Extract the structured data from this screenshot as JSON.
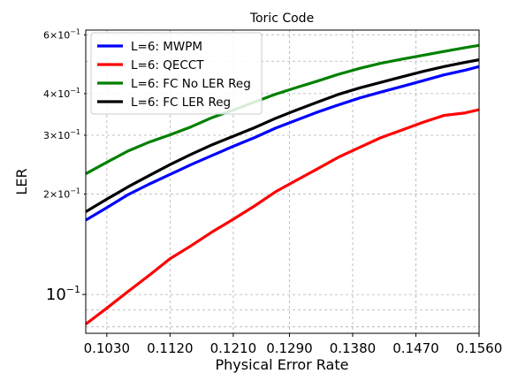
{
  "chart_data": {
    "type": "line",
    "title": "Toric Code",
    "xlabel": "Physical Error Rate",
    "ylabel": "LER",
    "yscale": "log",
    "xlim": [
      0.1,
      0.156
    ],
    "ylim": [
      0.0765,
      0.62
    ],
    "grid": true,
    "legend_position": "top-left",
    "x_ticks": [
      "0.1030",
      "0.1120",
      "0.1210",
      "0.1290",
      "0.1380",
      "0.1470",
      "0.1560"
    ],
    "x_tick_values": [
      0.103,
      0.112,
      0.121,
      0.129,
      0.138,
      0.147,
      0.156
    ],
    "y_ticks": [
      {
        "value": 0.1,
        "mant": "10",
        "exp": "−1",
        "major": true
      },
      {
        "value": 0.2,
        "mant": "2×10",
        "exp": "−1",
        "major": false
      },
      {
        "value": 0.3,
        "mant": "3×10",
        "exp": "−1",
        "major": false
      },
      {
        "value": 0.4,
        "mant": "4×10",
        "exp": "−1",
        "major": false
      },
      {
        "value": 0.6,
        "mant": "6×10",
        "exp": "−1",
        "major": false
      }
    ],
    "y_grid_values": [
      0.08,
      0.09,
      0.1,
      0.2,
      0.3,
      0.4,
      0.5,
      0.6
    ],
    "x": [
      0.1,
      0.103,
      0.106,
      0.109,
      0.112,
      0.115,
      0.118,
      0.121,
      0.124,
      0.127,
      0.13,
      0.133,
      0.136,
      0.139,
      0.142,
      0.145,
      0.148,
      0.151,
      0.154,
      0.156
    ],
    "series": [
      {
        "name": "L=6: MWPM",
        "color": "#0000ff",
        "values": [
          0.167,
          0.182,
          0.199,
          0.214,
          0.229,
          0.245,
          0.261,
          0.278,
          0.295,
          0.315,
          0.333,
          0.352,
          0.37,
          0.388,
          0.404,
          0.42,
          0.437,
          0.455,
          0.47,
          0.482
        ]
      },
      {
        "name": "L=6: QECCT",
        "color": "#ff0000",
        "values": [
          0.0815,
          0.091,
          0.102,
          0.114,
          0.128,
          0.14,
          0.154,
          0.168,
          0.184,
          0.203,
          0.22,
          0.238,
          0.258,
          0.276,
          0.295,
          0.311,
          0.328,
          0.344,
          0.35,
          0.358
        ]
      },
      {
        "name": "L=6: FC No LER Reg",
        "color": "#008000",
        "values": [
          0.23,
          0.249,
          0.269,
          0.286,
          0.301,
          0.318,
          0.339,
          0.357,
          0.377,
          0.398,
          0.417,
          0.436,
          0.457,
          0.476,
          0.493,
          0.507,
          0.521,
          0.535,
          0.549,
          0.558
        ]
      },
      {
        "name": "L=6: FC LER Reg",
        "color": "#000000",
        "values": [
          0.177,
          0.193,
          0.21,
          0.227,
          0.245,
          0.263,
          0.281,
          0.298,
          0.316,
          0.337,
          0.357,
          0.377,
          0.398,
          0.416,
          0.432,
          0.449,
          0.466,
          0.482,
          0.496,
          0.505
        ]
      }
    ]
  }
}
